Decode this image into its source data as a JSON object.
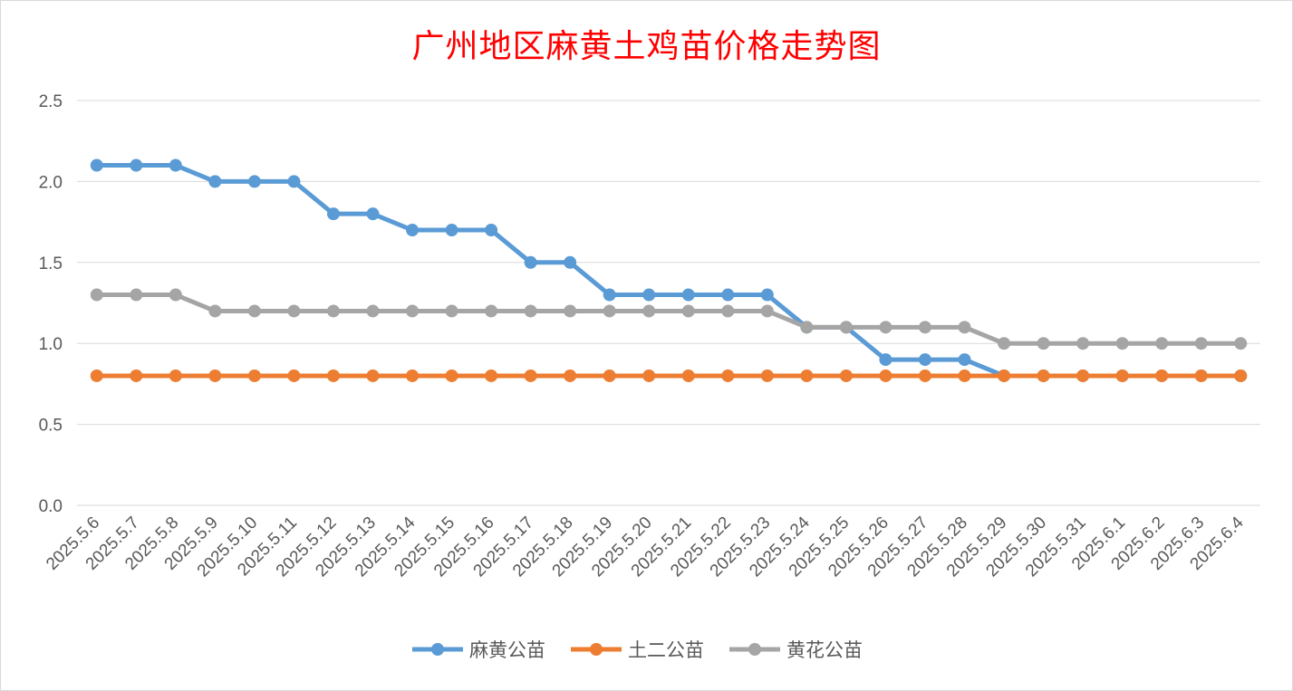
{
  "chart_data": {
    "type": "line",
    "title": "广州地区麻黄土鸡苗价格走势图",
    "xlabel": "",
    "ylabel": "",
    "ylim": [
      0,
      2.5
    ],
    "yticks": [
      "0.0",
      "0.5",
      "1.0",
      "1.5",
      "2.0",
      "2.5"
    ],
    "grid": true,
    "legend_position": "bottom",
    "categories": [
      "2025.5.6",
      "2025.5.7",
      "2025.5.8",
      "2025.5.9",
      "2025.5.10",
      "2025.5.11",
      "2025.5.12",
      "2025.5.13",
      "2025.5.14",
      "2025.5.15",
      "2025.5.16",
      "2025.5.17",
      "2025.5.18",
      "2025.5.19",
      "2025.5.20",
      "2025.5.21",
      "2025.5.22",
      "2025.5.23",
      "2025.5.24",
      "2025.5.25",
      "2025.5.26",
      "2025.5.27",
      "2025.5.28",
      "2025.5.29",
      "2025.5.30",
      "2025.5.31",
      "2025.6.1",
      "2025.6.2",
      "2025.6.3",
      "2025.6.4"
    ],
    "series": [
      {
        "name": "麻黄公苗",
        "color": "#5b9bd5",
        "values": [
          2.1,
          2.1,
          2.1,
          2.0,
          2.0,
          2.0,
          1.8,
          1.8,
          1.7,
          1.7,
          1.7,
          1.5,
          1.5,
          1.3,
          1.3,
          1.3,
          1.3,
          1.3,
          1.1,
          1.1,
          0.9,
          0.9,
          0.9,
          0.8,
          0.8,
          0.8,
          0.8,
          0.8,
          0.8,
          0.8
        ]
      },
      {
        "name": "土二公苗",
        "color": "#ed7d31",
        "values": [
          0.8,
          0.8,
          0.8,
          0.8,
          0.8,
          0.8,
          0.8,
          0.8,
          0.8,
          0.8,
          0.8,
          0.8,
          0.8,
          0.8,
          0.8,
          0.8,
          0.8,
          0.8,
          0.8,
          0.8,
          0.8,
          0.8,
          0.8,
          0.8,
          0.8,
          0.8,
          0.8,
          0.8,
          0.8,
          0.8
        ]
      },
      {
        "name": "黄花公苗",
        "color": "#a5a5a5",
        "values": [
          1.3,
          1.3,
          1.3,
          1.2,
          1.2,
          1.2,
          1.2,
          1.2,
          1.2,
          1.2,
          1.2,
          1.2,
          1.2,
          1.2,
          1.2,
          1.2,
          1.2,
          1.2,
          1.1,
          1.1,
          1.1,
          1.1,
          1.1,
          1.0,
          1.0,
          1.0,
          1.0,
          1.0,
          1.0,
          1.0
        ]
      }
    ]
  }
}
